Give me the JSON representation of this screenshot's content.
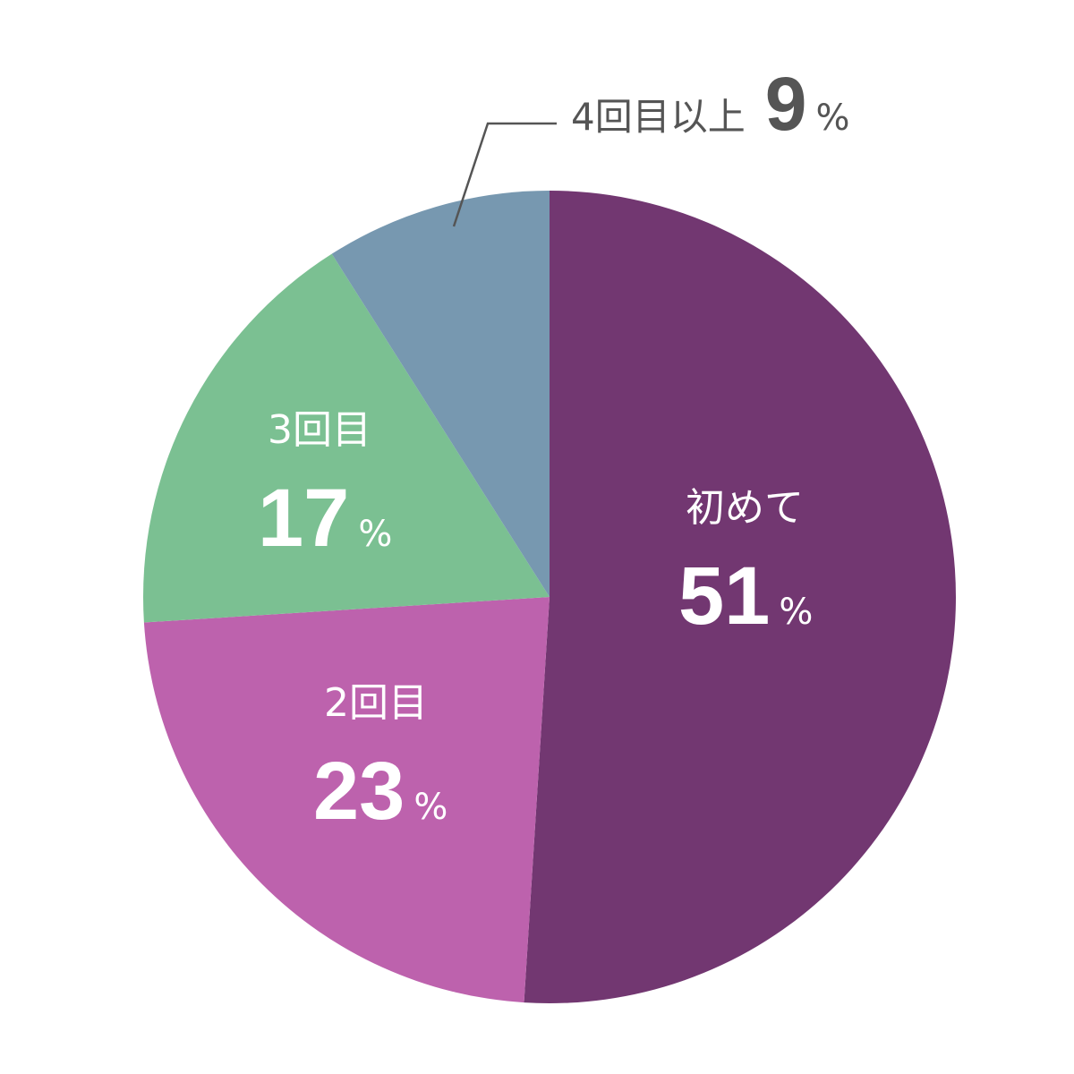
{
  "chart_data": {
    "type": "pie",
    "slices": [
      {
        "label": "初めて",
        "value": 51,
        "unit": "%",
        "color": "#723771"
      },
      {
        "label": "2回目",
        "value": 23,
        "unit": "%",
        "color": "#bd62ad"
      },
      {
        "label": "3回目",
        "value": 17,
        "unit": "%",
        "color": "#7bc092"
      },
      {
        "label": "4回目以上",
        "value": 9,
        "unit": "%",
        "color": "#7798b0"
      }
    ],
    "legend": "none",
    "label_color_inside": "#ffffff",
    "label_color_outside": "#555555",
    "leader_line_color": "#555555"
  }
}
